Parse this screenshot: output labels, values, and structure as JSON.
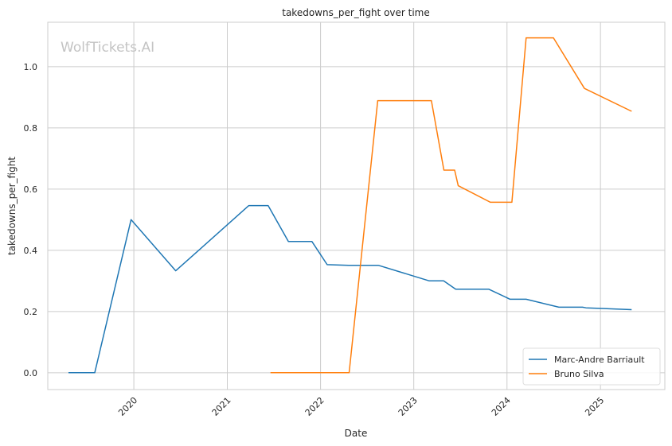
{
  "chart_data": {
    "type": "line",
    "title": "takedowns_per_fight over time",
    "xlabel": "Date",
    "ylabel": "takedowns_per_fight",
    "watermark": "WolfTickets.AI",
    "xlim": [
      "2019-01-29",
      "2025-09-10"
    ],
    "ylim": [
      -0.055,
      1.145
    ],
    "x_ticks": [
      "2020-01-01",
      "2021-01-01",
      "2022-01-01",
      "2023-01-01",
      "2024-01-01",
      "2025-01-01"
    ],
    "x_tick_labels": [
      "2020",
      "2021",
      "2022",
      "2023",
      "2024",
      "2025"
    ],
    "y_ticks": [
      0.0,
      0.2,
      0.4,
      0.6,
      0.8,
      1.0
    ],
    "y_tick_labels": [
      "0.0",
      "0.2",
      "0.4",
      "0.6",
      "0.8",
      "1.0"
    ],
    "grid": true,
    "legend_position": "lower-right",
    "series": [
      {
        "name": "Marc-Andre Barriault",
        "color": "#1f77b4",
        "x": [
          "2019-04-20",
          "2019-08-01",
          "2019-12-21",
          "2020-06-13",
          "2021-03-26",
          "2021-06-10",
          "2021-08-28",
          "2021-11-28",
          "2022-01-27",
          "2022-04-21",
          "2022-08-15",
          "2023-03-03",
          "2023-04-28",
          "2023-06-14",
          "2023-10-21",
          "2024-01-13",
          "2024-03-16",
          "2024-07-22",
          "2024-10-23",
          "2024-11-05",
          "2025-05-03"
        ],
        "y": [
          0.0,
          0.0,
          0.5,
          0.333,
          0.546,
          0.546,
          0.429,
          0.429,
          0.353,
          0.351,
          0.351,
          0.3,
          0.3,
          0.273,
          0.273,
          0.24,
          0.24,
          0.214,
          0.214,
          0.212,
          0.206
        ]
      },
      {
        "name": "Bruno Silva",
        "color": "#ff7f0e",
        "x": [
          "2021-06-19",
          "2022-04-23",
          "2022-08-13",
          "2023-03-11",
          "2023-04-29",
          "2023-06-10",
          "2023-06-24",
          "2023-10-28",
          "2024-01-20",
          "2024-03-16",
          "2024-07-01",
          "2024-10-30",
          "2025-05-03"
        ],
        "y": [
          0.0,
          0.0,
          0.889,
          0.889,
          0.662,
          0.662,
          0.611,
          0.557,
          0.557,
          1.094,
          1.094,
          0.929,
          0.854
        ]
      }
    ]
  }
}
